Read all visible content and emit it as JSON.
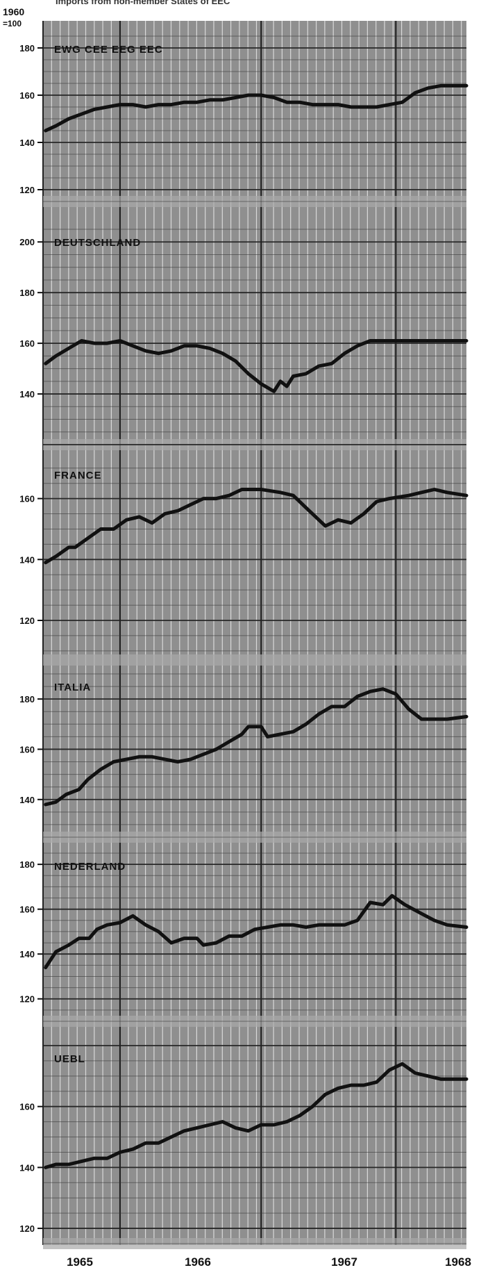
{
  "header": {
    "title": "Imports from non-member States of EEC",
    "base_label_line1": "1960",
    "base_label_line2": "=100"
  },
  "x_axis": {
    "ticks": [
      "1965",
      "1966",
      "1967",
      "1968"
    ]
  },
  "colors": {
    "grid_background": "#8f8f8f",
    "grid_line": "#e6e6e6",
    "panel_line": "#1a1a1a",
    "data_line": "#111111",
    "label_band": "#a8a8a8"
  },
  "chart_data": [
    {
      "type": "line",
      "title": "EWG CEE EEG EEC",
      "ylim": [
        115,
        185
      ],
      "y_ticks": [
        120,
        140,
        160,
        180
      ],
      "x_range": [
        1964.9,
        1968.2
      ],
      "grid": true,
      "series": [
        {
          "points": [
            [
              1964.92,
              145
            ],
            [
              1965.0,
              147
            ],
            [
              1965.1,
              150
            ],
            [
              1965.2,
              152
            ],
            [
              1965.3,
              154
            ],
            [
              1965.4,
              155
            ],
            [
              1965.5,
              156
            ],
            [
              1965.6,
              156
            ],
            [
              1965.7,
              155
            ],
            [
              1965.8,
              156
            ],
            [
              1965.9,
              156
            ],
            [
              1966.0,
              157
            ],
            [
              1966.1,
              157
            ],
            [
              1966.2,
              158
            ],
            [
              1966.3,
              158
            ],
            [
              1966.4,
              159
            ],
            [
              1966.5,
              160
            ],
            [
              1966.6,
              160
            ],
            [
              1966.7,
              159
            ],
            [
              1966.8,
              157
            ],
            [
              1966.9,
              157
            ],
            [
              1967.0,
              156
            ],
            [
              1967.1,
              156
            ],
            [
              1967.2,
              156
            ],
            [
              1967.3,
              155
            ],
            [
              1967.4,
              155
            ],
            [
              1967.5,
              155
            ],
            [
              1967.6,
              156
            ],
            [
              1967.7,
              157
            ],
            [
              1967.8,
              161
            ],
            [
              1967.9,
              163
            ],
            [
              1968.0,
              164
            ],
            [
              1968.1,
              164
            ],
            [
              1968.2,
              164
            ]
          ]
        }
      ]
    },
    {
      "type": "line",
      "title": "DEUTSCHLAND",
      "ylim": [
        120,
        205
      ],
      "y_ticks": [
        140,
        160,
        180,
        200
      ],
      "x_range": [
        1964.9,
        1968.2
      ],
      "grid": true,
      "series": [
        {
          "points": [
            [
              1964.92,
              152
            ],
            [
              1965.0,
              155
            ],
            [
              1965.1,
              158
            ],
            [
              1965.2,
              161
            ],
            [
              1965.3,
              160
            ],
            [
              1965.4,
              160
            ],
            [
              1965.5,
              161
            ],
            [
              1965.6,
              159
            ],
            [
              1965.7,
              157
            ],
            [
              1965.8,
              156
            ],
            [
              1965.9,
              157
            ],
            [
              1966.0,
              159
            ],
            [
              1966.1,
              159
            ],
            [
              1966.2,
              158
            ],
            [
              1966.3,
              156
            ],
            [
              1966.4,
              153
            ],
            [
              1966.5,
              148
            ],
            [
              1966.6,
              144
            ],
            [
              1966.7,
              141
            ],
            [
              1966.75,
              145
            ],
            [
              1966.8,
              143
            ],
            [
              1966.85,
              147
            ],
            [
              1966.95,
              148
            ],
            [
              1967.05,
              151
            ],
            [
              1967.15,
              152
            ],
            [
              1967.25,
              156
            ],
            [
              1967.35,
              159
            ],
            [
              1967.45,
              161
            ],
            [
              1967.6,
              161
            ],
            [
              1967.8,
              161
            ],
            [
              1968.0,
              161
            ],
            [
              1968.2,
              161
            ]
          ]
        }
      ]
    },
    {
      "type": "line",
      "title": "FRANCE",
      "ylim": [
        107,
        172
      ],
      "y_ticks": [
        120,
        140,
        160
      ],
      "x_range": [
        1964.9,
        1968.2
      ],
      "grid": true,
      "series": [
        {
          "points": [
            [
              1964.92,
              139
            ],
            [
              1965.0,
              141
            ],
            [
              1965.1,
              144
            ],
            [
              1965.15,
              144
            ],
            [
              1965.25,
              147
            ],
            [
              1965.35,
              150
            ],
            [
              1965.45,
              150
            ],
            [
              1965.55,
              153
            ],
            [
              1965.65,
              154
            ],
            [
              1965.75,
              152
            ],
            [
              1965.85,
              155
            ],
            [
              1965.95,
              156
            ],
            [
              1966.05,
              158
            ],
            [
              1966.15,
              160
            ],
            [
              1966.25,
              160
            ],
            [
              1966.35,
              161
            ],
            [
              1966.45,
              163
            ],
            [
              1966.6,
              163
            ],
            [
              1966.75,
              162
            ],
            [
              1966.85,
              161
            ],
            [
              1966.95,
              157
            ],
            [
              1967.05,
              153
            ],
            [
              1967.1,
              151
            ],
            [
              1967.2,
              153
            ],
            [
              1967.3,
              152
            ],
            [
              1967.4,
              155
            ],
            [
              1967.5,
              159
            ],
            [
              1967.6,
              160
            ],
            [
              1967.75,
              161
            ],
            [
              1967.85,
              162
            ],
            [
              1967.95,
              163
            ],
            [
              1968.05,
              162
            ],
            [
              1968.2,
              161
            ]
          ]
        }
      ]
    },
    {
      "type": "line",
      "title": "ITALIA",
      "ylim": [
        125,
        190
      ],
      "y_ticks": [
        140,
        160,
        180
      ],
      "x_range": [
        1964.9,
        1968.2
      ],
      "grid": true,
      "series": [
        {
          "points": [
            [
              1964.92,
              138
            ],
            [
              1965.0,
              139
            ],
            [
              1965.08,
              142
            ],
            [
              1965.18,
              144
            ],
            [
              1965.25,
              148
            ],
            [
              1965.35,
              152
            ],
            [
              1965.45,
              155
            ],
            [
              1965.55,
              156
            ],
            [
              1965.65,
              157
            ],
            [
              1965.75,
              157
            ],
            [
              1965.85,
              156
            ],
            [
              1965.95,
              155
            ],
            [
              1966.05,
              156
            ],
            [
              1966.15,
              158
            ],
            [
              1966.25,
              160
            ],
            [
              1966.35,
              163
            ],
            [
              1966.45,
              166
            ],
            [
              1966.5,
              169
            ],
            [
              1966.6,
              169
            ],
            [
              1966.65,
              165
            ],
            [
              1966.75,
              166
            ],
            [
              1966.85,
              167
            ],
            [
              1966.95,
              170
            ],
            [
              1967.05,
              174
            ],
            [
              1967.15,
              177
            ],
            [
              1967.25,
              177
            ],
            [
              1967.35,
              181
            ],
            [
              1967.45,
              183
            ],
            [
              1967.55,
              184
            ],
            [
              1967.65,
              182
            ],
            [
              1967.75,
              176
            ],
            [
              1967.85,
              172
            ],
            [
              1967.95,
              172
            ],
            [
              1968.05,
              172
            ],
            [
              1968.2,
              173
            ]
          ]
        }
      ]
    },
    {
      "type": "line",
      "title": "NEDERLAND",
      "ylim": [
        110,
        185
      ],
      "y_ticks": [
        120,
        140,
        160,
        180
      ],
      "x_range": [
        1964.9,
        1968.2
      ],
      "grid": true,
      "series": [
        {
          "points": [
            [
              1964.92,
              134
            ],
            [
              1965.0,
              141
            ],
            [
              1965.1,
              144
            ],
            [
              1965.18,
              147
            ],
            [
              1965.26,
              147
            ],
            [
              1965.32,
              151
            ],
            [
              1965.4,
              153
            ],
            [
              1965.5,
              154
            ],
            [
              1965.6,
              157
            ],
            [
              1965.7,
              153
            ],
            [
              1965.8,
              150
            ],
            [
              1965.9,
              145
            ],
            [
              1966.0,
              147
            ],
            [
              1966.1,
              147
            ],
            [
              1966.15,
              144
            ],
            [
              1966.25,
              145
            ],
            [
              1966.35,
              148
            ],
            [
              1966.45,
              148
            ],
            [
              1966.55,
              151
            ],
            [
              1966.65,
              152
            ],
            [
              1966.75,
              153
            ],
            [
              1966.85,
              153
            ],
            [
              1966.95,
              152
            ],
            [
              1967.05,
              153
            ],
            [
              1967.15,
              153
            ],
            [
              1967.25,
              153
            ],
            [
              1967.35,
              155
            ],
            [
              1967.45,
              163
            ],
            [
              1967.55,
              162
            ],
            [
              1967.62,
              166
            ],
            [
              1967.72,
              162
            ],
            [
              1967.85,
              158
            ],
            [
              1967.95,
              155
            ],
            [
              1968.05,
              153
            ],
            [
              1968.2,
              152
            ]
          ]
        }
      ]
    },
    {
      "type": "line",
      "title": "UEBL",
      "ylim": [
        115,
        180
      ],
      "y_ticks": [
        120,
        140,
        160
      ],
      "x_range": [
        1964.9,
        1968.2
      ],
      "grid": true,
      "series": [
        {
          "points": [
            [
              1964.92,
              140
            ],
            [
              1965.0,
              141
            ],
            [
              1965.1,
              141
            ],
            [
              1965.2,
              142
            ],
            [
              1965.3,
              143
            ],
            [
              1965.4,
              143
            ],
            [
              1965.5,
              145
            ],
            [
              1965.6,
              146
            ],
            [
              1965.7,
              148
            ],
            [
              1965.8,
              148
            ],
            [
              1965.9,
              150
            ],
            [
              1966.0,
              152
            ],
            [
              1966.1,
              153
            ],
            [
              1966.2,
              154
            ],
            [
              1966.3,
              155
            ],
            [
              1966.4,
              153
            ],
            [
              1966.5,
              152
            ],
            [
              1966.6,
              154
            ],
            [
              1966.7,
              154
            ],
            [
              1966.8,
              155
            ],
            [
              1966.9,
              157
            ],
            [
              1967.0,
              160
            ],
            [
              1967.1,
              164
            ],
            [
              1967.2,
              166
            ],
            [
              1967.3,
              167
            ],
            [
              1967.4,
              167
            ],
            [
              1967.5,
              168
            ],
            [
              1967.6,
              172
            ],
            [
              1967.7,
              174
            ],
            [
              1967.8,
              171
            ],
            [
              1967.9,
              170
            ],
            [
              1968.0,
              169
            ],
            [
              1968.2,
              169
            ]
          ]
        }
      ]
    }
  ]
}
